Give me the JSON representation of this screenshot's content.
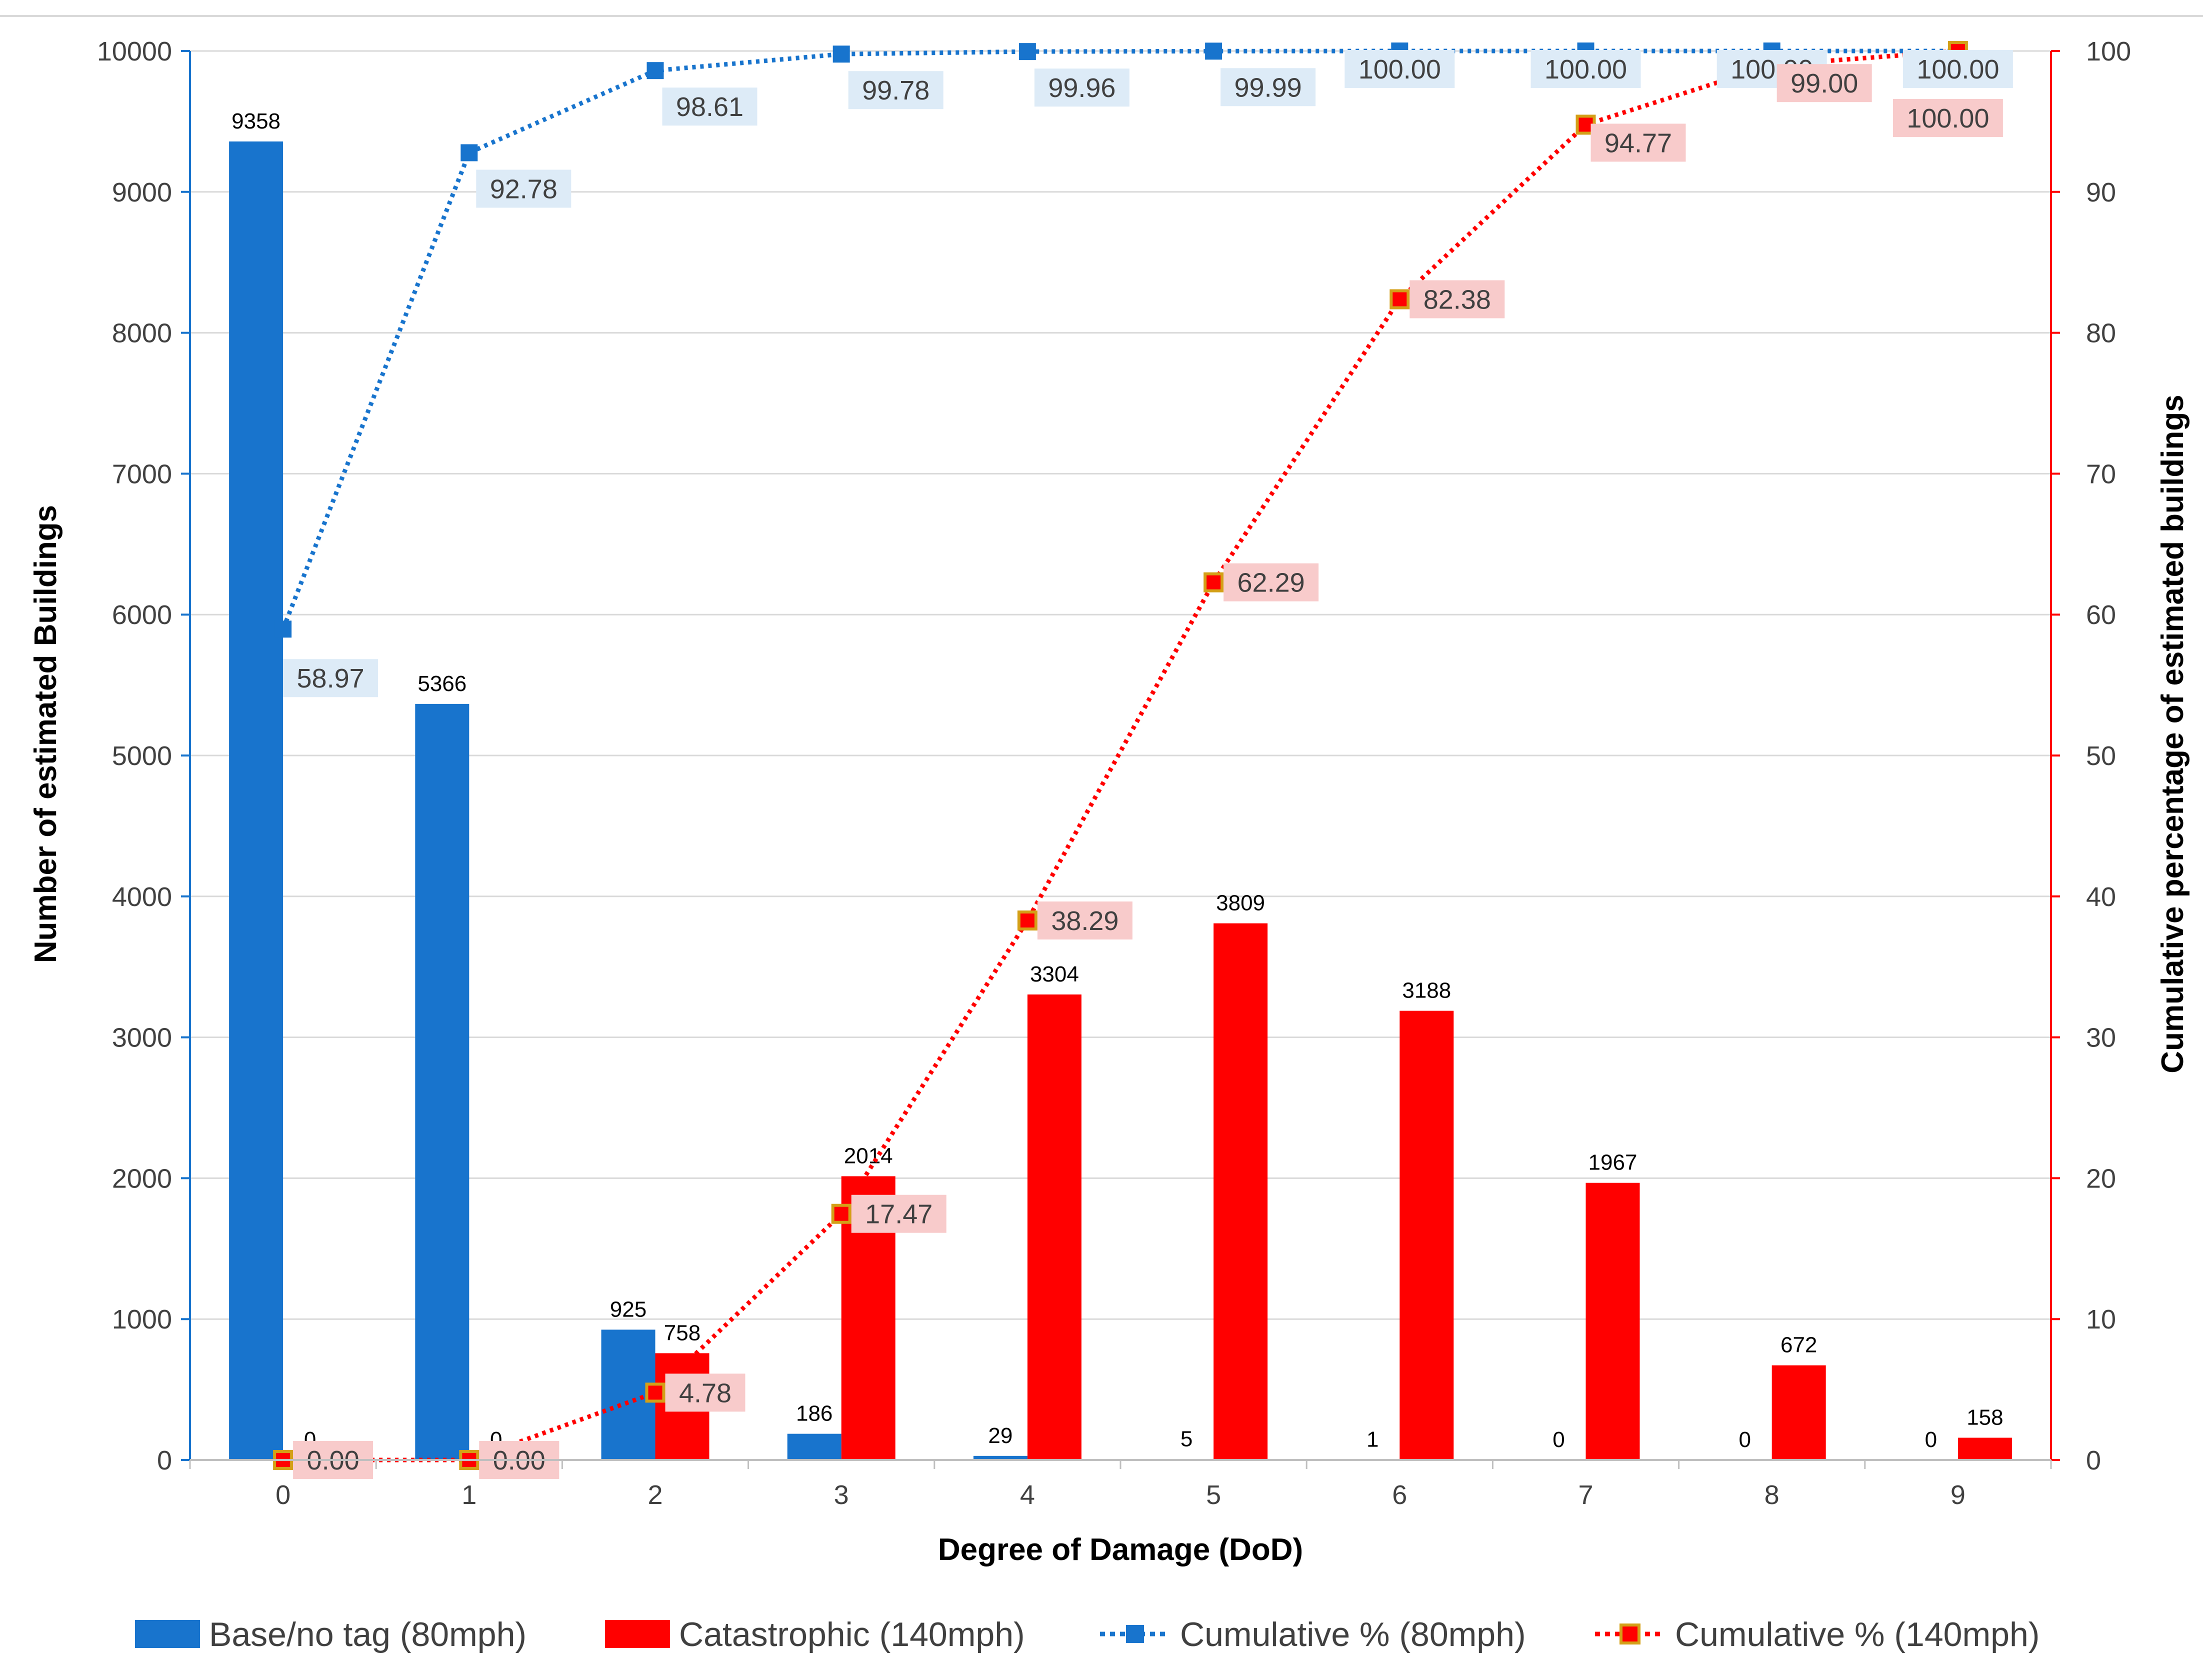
{
  "chart_data": {
    "type": "bar",
    "title": "",
    "xlabel": "Degree of Damage (DoD)",
    "ylabel": "Number of estimated Buildings",
    "y2label": "Cumulative percentage of estimated buildings",
    "categories": [
      "0",
      "1",
      "2",
      "3",
      "4",
      "5",
      "6",
      "7",
      "8",
      "9"
    ],
    "ylim": [
      0,
      10000
    ],
    "y_ticks": [
      "0",
      "1000",
      "2000",
      "3000",
      "4000",
      "5000",
      "6000",
      "7000",
      "8000",
      "9000",
      "10000"
    ],
    "y2lim": [
      0,
      100
    ],
    "y2_ticks": [
      "0",
      "10",
      "20",
      "30",
      "40",
      "50",
      "60",
      "70",
      "80",
      "90",
      "100"
    ],
    "grid": true,
    "legend_position": "bottom",
    "series": [
      {
        "name": "Base/no tag (80mph)",
        "kind": "bar",
        "axis": "left",
        "color": "#1874CD",
        "values": [
          9358,
          5366,
          925,
          186,
          29,
          5,
          1,
          0,
          0,
          0
        ]
      },
      {
        "name": "Catastrophic (140mph)",
        "kind": "bar",
        "axis": "left",
        "color": "#FF0000",
        "values": [
          0,
          0,
          758,
          2014,
          3304,
          3809,
          3188,
          1967,
          672,
          158
        ]
      },
      {
        "name": "Cumulative % (80mph)",
        "kind": "line",
        "axis": "right",
        "color": "#1874CD",
        "label_bg": "#DDEBF7",
        "values": [
          58.97,
          92.78,
          98.61,
          99.78,
          99.96,
          99.99,
          100.0,
          100.0,
          100.0,
          100.0
        ],
        "labels": [
          "58.97",
          "92.78",
          "98.61",
          "99.78",
          "99.96",
          "99.99",
          "100.00",
          "100.00",
          "100.00",
          "100.00"
        ]
      },
      {
        "name": "Cumulative % (140mph)",
        "kind": "line",
        "axis": "right",
        "color": "#FF0000",
        "marker_edge": "#D4A017",
        "label_bg": "#F8CBCB",
        "values": [
          0.0,
          0.0,
          4.78,
          17.47,
          38.29,
          62.29,
          82.38,
          94.77,
          99.0,
          100.0
        ],
        "labels": [
          "0.00",
          "0.00",
          "4.78",
          "17.47",
          "38.29",
          "62.29",
          "82.38",
          "94.77",
          "99.00",
          "100.00"
        ]
      }
    ]
  }
}
